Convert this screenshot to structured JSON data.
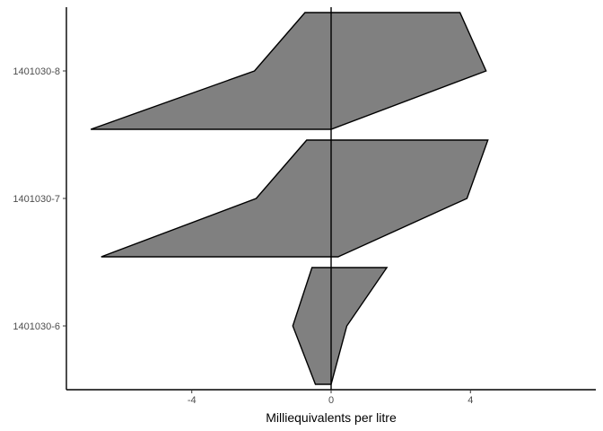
{
  "chart_data": {
    "type": "area",
    "subtype": "stiff-diagram",
    "title": "",
    "xlabel": "Milliequivalents per litre",
    "ylabel": "",
    "xlim": [
      -7.6,
      7.6
    ],
    "x_ticks": [
      -4,
      0,
      4
    ],
    "x_tick_labels": [
      "-4",
      "0",
      "4"
    ],
    "grid": false,
    "legend": "none",
    "fill_color": "#808080",
    "line_color": "#000000",
    "y_ticks": [
      "1401030-6",
      "1401030-7",
      "1401030-8"
    ],
    "series": [
      {
        "name": "1401030-6",
        "points": [
          [
            -0.55,
            0.33
          ],
          [
            1.6,
            0.33
          ],
          [
            0.45,
            0.0
          ],
          [
            0.0,
            -0.33
          ],
          [
            -0.45,
            -0.33
          ],
          [
            -1.1,
            0.0
          ]
        ]
      },
      {
        "name": "1401030-7",
        "points": [
          [
            -0.7,
            0.33
          ],
          [
            4.5,
            0.33
          ],
          [
            3.9,
            0.0
          ],
          [
            0.2,
            -0.33
          ],
          [
            -6.6,
            -0.33
          ],
          [
            -2.15,
            0.0
          ]
        ]
      },
      {
        "name": "1401030-8",
        "points": [
          [
            -0.75,
            0.33
          ],
          [
            3.7,
            0.33
          ],
          [
            4.45,
            0.0
          ],
          [
            0.0,
            -0.33
          ],
          [
            -6.9,
            -0.33
          ],
          [
            -2.2,
            0.0
          ]
        ]
      }
    ]
  }
}
